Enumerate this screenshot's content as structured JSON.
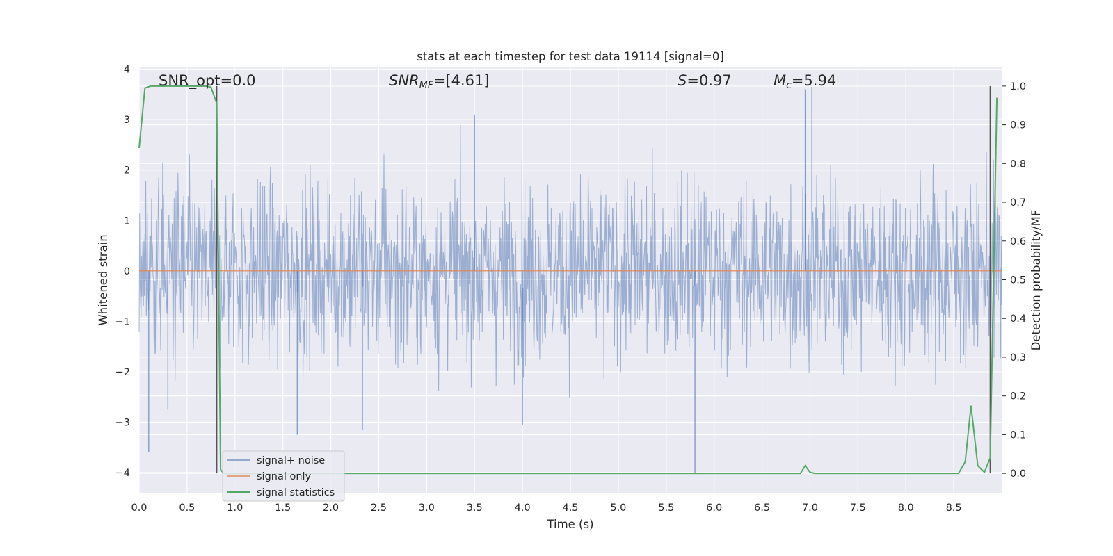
{
  "chart_data": {
    "type": "line",
    "title": "stats at each timestep for test data 19114 [signal=0]",
    "xlabel": "Time (s)",
    "ylabel": "Whitened strain",
    "y2label": "Detection probability/MF",
    "xlim": [
      0.0,
      9.0
    ],
    "ylim": [
      -4.4,
      4.05
    ],
    "y2lim": [
      -0.05,
      1.05
    ],
    "x_ticks": [
      0.0,
      0.5,
      1.0,
      1.5,
      2.0,
      2.5,
      3.0,
      3.5,
      4.0,
      4.5,
      5.0,
      5.5,
      6.0,
      6.5,
      7.0,
      7.5,
      8.0,
      8.5
    ],
    "x_tick_labels": [
      "0.0",
      "0.5",
      "1.0",
      "1.5",
      "2.0",
      "2.5",
      "3.0",
      "3.5",
      "4.0",
      "4.5",
      "5.0",
      "5.5",
      "6.0",
      "6.5",
      "7.0",
      "7.5",
      "8.0",
      "8.5"
    ],
    "y_ticks": [
      4,
      3,
      2,
      1,
      0,
      -1,
      -2,
      -3,
      -4
    ],
    "y_tick_labels": [
      "4",
      "3",
      "2",
      "1",
      "0",
      "−1",
      "−2",
      "−3",
      "−4"
    ],
    "y2_ticks": [
      1.0,
      0.9,
      0.8,
      0.7,
      0.6,
      0.5,
      0.4,
      0.3,
      0.2,
      0.1,
      0.0
    ],
    "y2_tick_labels": [
      "1.0",
      "0.9",
      "0.8",
      "0.7",
      "0.6",
      "0.5",
      "0.4",
      "0.3",
      "0.2",
      "0.1",
      "0.0"
    ],
    "grid": true,
    "legend_position": "lower-left",
    "annotations": {
      "snr_opt": "SNR_opt=0.0",
      "snr_mf_main": "SNR",
      "snr_mf_sub": "MF",
      "snr_mf_value": "=[4.61]",
      "s_main": "S",
      "s_value": "=0.97",
      "mc_main": "M",
      "mc_sub": "c",
      "mc_value": "=5.94"
    },
    "vlines": [
      0.81,
      8.88
    ],
    "series": [
      {
        "name": "signal+ noise",
        "color": "#4c72b0",
        "kind": "noise",
        "t_start": 0.0,
        "t_end": 9.0,
        "amplitude": "whitened noise, |y| mostly < 3, extremes near +3.65 and -4.0",
        "spikes": [
          [
            0.1,
            -3.6
          ],
          [
            0.3,
            -2.75
          ],
          [
            1.65,
            -3.25
          ],
          [
            2.33,
            -3.15
          ],
          [
            3.5,
            3.1
          ],
          [
            4.0,
            -3.05
          ],
          [
            5.8,
            -4.0
          ],
          [
            6.95,
            3.6
          ],
          [
            7.02,
            3.65
          ]
        ]
      },
      {
        "name": "signal only",
        "color": "#dd8452",
        "kind": "line",
        "x": [
          0.0,
          9.0
        ],
        "y": [
          0.0,
          0.0
        ]
      },
      {
        "name": "signal statistics",
        "color": "#55a868",
        "kind": "line",
        "axis": "right",
        "x": [
          0.0,
          0.06,
          0.12,
          0.3,
          0.5,
          0.6,
          0.7,
          0.75,
          0.81,
          0.85,
          0.88,
          1.0,
          6.9,
          6.95,
          7.0,
          7.05,
          8.55,
          8.62,
          8.68,
          8.75,
          8.82,
          8.88,
          8.95
        ],
        "y": [
          0.84,
          0.995,
          1.0,
          1.0,
          1.0,
          1.0,
          1.0,
          0.997,
          0.955,
          0.01,
          0.0,
          0.0,
          0.0,
          0.02,
          0.003,
          0.0,
          0.0,
          0.03,
          0.175,
          0.02,
          0.003,
          0.04,
          0.97
        ]
      }
    ]
  }
}
